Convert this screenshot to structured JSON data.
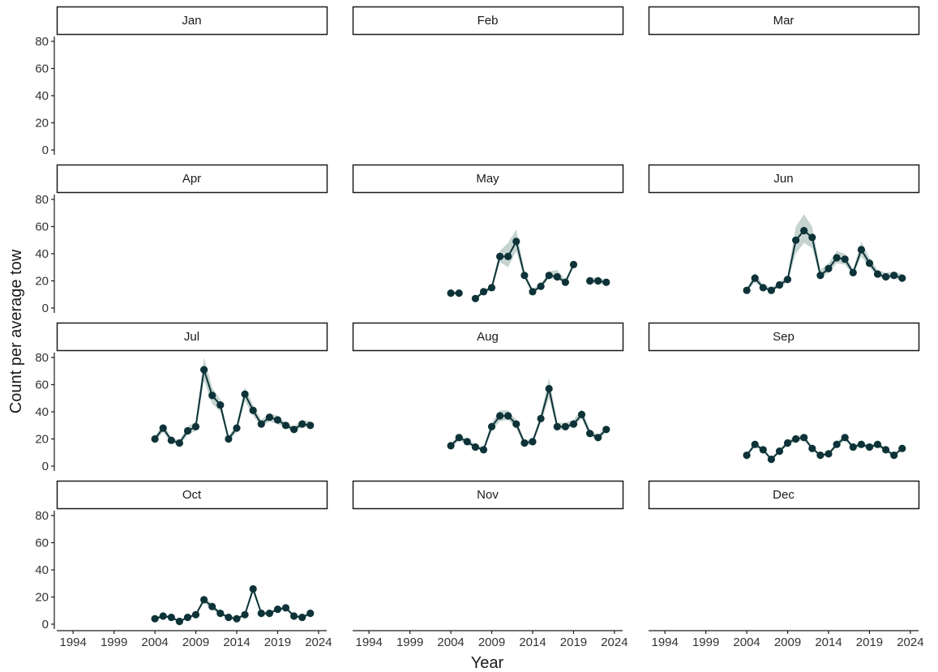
{
  "chart_data": {
    "type": "line",
    "xlabel": "Year",
    "ylabel": "Count per average tow",
    "xlim": [
      1992,
      2025
    ],
    "ylim": [
      0,
      88
    ],
    "x_ticks": [
      1994,
      1999,
      2004,
      2009,
      2014,
      2019,
      2024
    ],
    "x_tick_labels": [
      "1994",
      "1999",
      "2004",
      "2009",
      "2014",
      "2019",
      "2024"
    ],
    "y_ticks": [
      0,
      20,
      40,
      60,
      80
    ],
    "y_tick_labels": [
      "0",
      "20",
      "40",
      "60",
      "80"
    ],
    "grid": false,
    "line_color": "#0d3338",
    "band_color": "#9fb8b2",
    "panels": [
      {
        "month": "Jan",
        "points": []
      },
      {
        "month": "Feb",
        "points": []
      },
      {
        "month": "Mar",
        "points": []
      },
      {
        "month": "Apr",
        "points": []
      },
      {
        "month": "May",
        "points": [
          {
            "year": 2004,
            "value": 11,
            "lo": 10,
            "hi": 12
          },
          {
            "year": 2005,
            "value": 11,
            "lo": 10,
            "hi": 12
          },
          {
            "year": 2007,
            "value": 7,
            "lo": 6,
            "hi": 8
          },
          {
            "year": 2008,
            "value": 12,
            "lo": 11,
            "hi": 13
          },
          {
            "year": 2009,
            "value": 15,
            "lo": 13,
            "hi": 17
          },
          {
            "year": 2010,
            "value": 38,
            "lo": 34,
            "hi": 42
          },
          {
            "year": 2011,
            "value": 38,
            "lo": 30,
            "hi": 48
          },
          {
            "year": 2012,
            "value": 49,
            "lo": 42,
            "hi": 58
          },
          {
            "year": 2013,
            "value": 24,
            "lo": 22,
            "hi": 27
          },
          {
            "year": 2014,
            "value": 12,
            "lo": 11,
            "hi": 14
          },
          {
            "year": 2015,
            "value": 16,
            "lo": 15,
            "hi": 18
          },
          {
            "year": 2016,
            "value": 24,
            "lo": 22,
            "hi": 27
          },
          {
            "year": 2017,
            "value": 23,
            "lo": 21,
            "hi": 28
          },
          {
            "year": 2018,
            "value": 19,
            "lo": 18,
            "hi": 21
          },
          {
            "year": 2019,
            "value": 32,
            "lo": 31,
            "hi": 33
          },
          {
            "year": 2021,
            "value": 20,
            "lo": 18,
            "hi": 23
          },
          {
            "year": 2022,
            "value": 20,
            "lo": 18,
            "hi": 22
          },
          {
            "year": 2023,
            "value": 19,
            "lo": 17,
            "hi": 21
          }
        ]
      },
      {
        "month": "Jun",
        "points": [
          {
            "year": 2004,
            "value": 13,
            "lo": 12,
            "hi": 14
          },
          {
            "year": 2005,
            "value": 22,
            "lo": 19,
            "hi": 26
          },
          {
            "year": 2006,
            "value": 15,
            "lo": 14,
            "hi": 17
          },
          {
            "year": 2007,
            "value": 13,
            "lo": 12,
            "hi": 15
          },
          {
            "year": 2008,
            "value": 17,
            "lo": 15,
            "hi": 19
          },
          {
            "year": 2009,
            "value": 21,
            "lo": 19,
            "hi": 24
          },
          {
            "year": 2010,
            "value": 50,
            "lo": 40,
            "hi": 60
          },
          {
            "year": 2011,
            "value": 57,
            "lo": 48,
            "hi": 69
          },
          {
            "year": 2012,
            "value": 52,
            "lo": 44,
            "hi": 60
          },
          {
            "year": 2013,
            "value": 24,
            "lo": 22,
            "hi": 28
          },
          {
            "year": 2014,
            "value": 29,
            "lo": 26,
            "hi": 33
          },
          {
            "year": 2015,
            "value": 37,
            "lo": 33,
            "hi": 42
          },
          {
            "year": 2016,
            "value": 36,
            "lo": 32,
            "hi": 40
          },
          {
            "year": 2017,
            "value": 26,
            "lo": 24,
            "hi": 28
          },
          {
            "year": 2018,
            "value": 43,
            "lo": 38,
            "hi": 49
          },
          {
            "year": 2019,
            "value": 33,
            "lo": 30,
            "hi": 37
          },
          {
            "year": 2020,
            "value": 25,
            "lo": 23,
            "hi": 28
          },
          {
            "year": 2021,
            "value": 23,
            "lo": 21,
            "hi": 26
          },
          {
            "year": 2022,
            "value": 24,
            "lo": 22,
            "hi": 27
          },
          {
            "year": 2023,
            "value": 22,
            "lo": 20,
            "hi": 25
          }
        ]
      },
      {
        "month": "Jul",
        "points": [
          {
            "year": 2004,
            "value": 20,
            "lo": 18,
            "hi": 22
          },
          {
            "year": 2005,
            "value": 28,
            "lo": 25,
            "hi": 31
          },
          {
            "year": 2006,
            "value": 19,
            "lo": 17,
            "hi": 21
          },
          {
            "year": 2007,
            "value": 17,
            "lo": 15,
            "hi": 19
          },
          {
            "year": 2008,
            "value": 26,
            "lo": 23,
            "hi": 29
          },
          {
            "year": 2009,
            "value": 29,
            "lo": 26,
            "hi": 33
          },
          {
            "year": 2010,
            "value": 71,
            "lo": 63,
            "hi": 80
          },
          {
            "year": 2011,
            "value": 52,
            "lo": 46,
            "hi": 58
          },
          {
            "year": 2012,
            "value": 45,
            "lo": 40,
            "hi": 49
          },
          {
            "year": 2013,
            "value": 20,
            "lo": 18,
            "hi": 22
          },
          {
            "year": 2014,
            "value": 28,
            "lo": 25,
            "hi": 31
          },
          {
            "year": 2015,
            "value": 53,
            "lo": 48,
            "hi": 58
          },
          {
            "year": 2016,
            "value": 41,
            "lo": 37,
            "hi": 45
          },
          {
            "year": 2017,
            "value": 31,
            "lo": 29,
            "hi": 34
          },
          {
            "year": 2018,
            "value": 36,
            "lo": 33,
            "hi": 39
          },
          {
            "year": 2019,
            "value": 34,
            "lo": 31,
            "hi": 37
          },
          {
            "year": 2020,
            "value": 30,
            "lo": 28,
            "hi": 32
          },
          {
            "year": 2021,
            "value": 27,
            "lo": 25,
            "hi": 29
          },
          {
            "year": 2022,
            "value": 31,
            "lo": 29,
            "hi": 34
          },
          {
            "year": 2023,
            "value": 30,
            "lo": 28,
            "hi": 33
          }
        ]
      },
      {
        "month": "Aug",
        "points": [
          {
            "year": 2004,
            "value": 15,
            "lo": 13,
            "hi": 17
          },
          {
            "year": 2005,
            "value": 21,
            "lo": 19,
            "hi": 23
          },
          {
            "year": 2006,
            "value": 18,
            "lo": 16,
            "hi": 20
          },
          {
            "year": 2007,
            "value": 14,
            "lo": 13,
            "hi": 16
          },
          {
            "year": 2008,
            "value": 12,
            "lo": 11,
            "hi": 14
          },
          {
            "year": 2009,
            "value": 29,
            "lo": 26,
            "hi": 32
          },
          {
            "year": 2010,
            "value": 37,
            "lo": 33,
            "hi": 41
          },
          {
            "year": 2011,
            "value": 37,
            "lo": 34,
            "hi": 41
          },
          {
            "year": 2012,
            "value": 31,
            "lo": 28,
            "hi": 34
          },
          {
            "year": 2013,
            "value": 17,
            "lo": 15,
            "hi": 19
          },
          {
            "year": 2014,
            "value": 18,
            "lo": 16,
            "hi": 20
          },
          {
            "year": 2015,
            "value": 35,
            "lo": 32,
            "hi": 38
          },
          {
            "year": 2016,
            "value": 57,
            "lo": 50,
            "hi": 65
          },
          {
            "year": 2017,
            "value": 29,
            "lo": 27,
            "hi": 32
          },
          {
            "year": 2018,
            "value": 29,
            "lo": 27,
            "hi": 32
          },
          {
            "year": 2019,
            "value": 31,
            "lo": 29,
            "hi": 34
          },
          {
            "year": 2020,
            "value": 38,
            "lo": 35,
            "hi": 42
          },
          {
            "year": 2021,
            "value": 24,
            "lo": 22,
            "hi": 27
          },
          {
            "year": 2022,
            "value": 21,
            "lo": 19,
            "hi": 23
          },
          {
            "year": 2023,
            "value": 27,
            "lo": 25,
            "hi": 30
          }
        ]
      },
      {
        "month": "Sep",
        "points": [
          {
            "year": 2004,
            "value": 8,
            "lo": 7,
            "hi": 9
          },
          {
            "year": 2005,
            "value": 16,
            "lo": 14,
            "hi": 18
          },
          {
            "year": 2006,
            "value": 12,
            "lo": 11,
            "hi": 13
          },
          {
            "year": 2007,
            "value": 5,
            "lo": 4,
            "hi": 6
          },
          {
            "year": 2008,
            "value": 11,
            "lo": 10,
            "hi": 12
          },
          {
            "year": 2009,
            "value": 17,
            "lo": 15,
            "hi": 19
          },
          {
            "year": 2010,
            "value": 20,
            "lo": 18,
            "hi": 22
          },
          {
            "year": 2011,
            "value": 21,
            "lo": 19,
            "hi": 23
          },
          {
            "year": 2012,
            "value": 13,
            "lo": 12,
            "hi": 14
          },
          {
            "year": 2013,
            "value": 8,
            "lo": 7,
            "hi": 9
          },
          {
            "year": 2014,
            "value": 9,
            "lo": 8,
            "hi": 10
          },
          {
            "year": 2015,
            "value": 16,
            "lo": 14,
            "hi": 18
          },
          {
            "year": 2016,
            "value": 21,
            "lo": 19,
            "hi": 23
          },
          {
            "year": 2017,
            "value": 14,
            "lo": 13,
            "hi": 15
          },
          {
            "year": 2018,
            "value": 16,
            "lo": 14,
            "hi": 18
          },
          {
            "year": 2019,
            "value": 14,
            "lo": 13,
            "hi": 15
          },
          {
            "year": 2020,
            "value": 16,
            "lo": 14,
            "hi": 18
          },
          {
            "year": 2021,
            "value": 12,
            "lo": 11,
            "hi": 13
          },
          {
            "year": 2022,
            "value": 8,
            "lo": 7,
            "hi": 9
          },
          {
            "year": 2023,
            "value": 13,
            "lo": 12,
            "hi": 14
          }
        ]
      },
      {
        "month": "Oct",
        "points": [
          {
            "year": 2004,
            "value": 4,
            "lo": 3,
            "hi": 5
          },
          {
            "year": 2005,
            "value": 6,
            "lo": 5,
            "hi": 7
          },
          {
            "year": 2006,
            "value": 5,
            "lo": 4,
            "hi": 6
          },
          {
            "year": 2007,
            "value": 2,
            "lo": 1.5,
            "hi": 2.5
          },
          {
            "year": 2008,
            "value": 5,
            "lo": 4,
            "hi": 6
          },
          {
            "year": 2009,
            "value": 7,
            "lo": 6,
            "hi": 8
          },
          {
            "year": 2010,
            "value": 18,
            "lo": 16,
            "hi": 20
          },
          {
            "year": 2011,
            "value": 13,
            "lo": 11,
            "hi": 15
          },
          {
            "year": 2012,
            "value": 8,
            "lo": 7,
            "hi": 9
          },
          {
            "year": 2013,
            "value": 5,
            "lo": 4,
            "hi": 6
          },
          {
            "year": 2014,
            "value": 4,
            "lo": 3,
            "hi": 5
          },
          {
            "year": 2015,
            "value": 7,
            "lo": 6,
            "hi": 8
          },
          {
            "year": 2016,
            "value": 26,
            "lo": 23,
            "hi": 29
          },
          {
            "year": 2017,
            "value": 8,
            "lo": 7,
            "hi": 9
          },
          {
            "year": 2018,
            "value": 8,
            "lo": 7,
            "hi": 9
          },
          {
            "year": 2019,
            "value": 11,
            "lo": 10,
            "hi": 12
          },
          {
            "year": 2020,
            "value": 12,
            "lo": 11,
            "hi": 13
          },
          {
            "year": 2021,
            "value": 6,
            "lo": 5,
            "hi": 7
          },
          {
            "year": 2022,
            "value": 5,
            "lo": 4,
            "hi": 6
          },
          {
            "year": 2023,
            "value": 8,
            "lo": 7,
            "hi": 9
          }
        ]
      },
      {
        "month": "Nov",
        "points": []
      },
      {
        "month": "Dec",
        "points": []
      }
    ]
  }
}
